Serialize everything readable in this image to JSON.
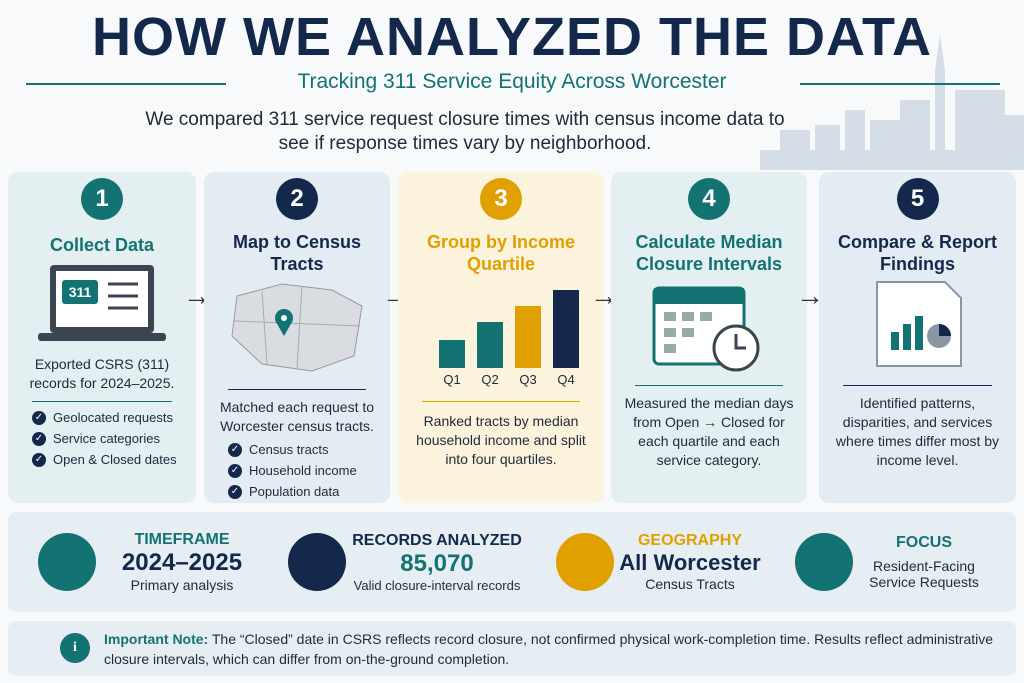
{
  "header": {
    "title": "HOW WE ANALYZED THE DATA",
    "subtitle": "Tracking 311 Service Equity Across Worcester",
    "intro": "We compared 311 service request closure times with census income data to see if response times vary by neighborhood."
  },
  "steps": [
    {
      "number": "1",
      "title": "Collect Data",
      "icon_text": "311",
      "description": "Exported CSRS (311) records for 2024–2025.",
      "bullets": [
        "Geolocated requests",
        "Service categories",
        "Open & Closed dates"
      ]
    },
    {
      "number": "2",
      "title": "Map to Census Tracts",
      "description": "Matched each request to Worcester census tracts.",
      "bullets": [
        "Census tracts",
        "Household income",
        "Population data"
      ]
    },
    {
      "number": "3",
      "title": "Group by Income Quartile",
      "icon_labels": [
        "Q1",
        "Q2",
        "Q3",
        "Q4"
      ],
      "description": "Ranked tracts by median household income and split into four quartiles."
    },
    {
      "number": "4",
      "title": "Calculate Median Closure Intervals",
      "description": "Measured the median days from Open → Closed for each quartile and each service category."
    },
    {
      "number": "5",
      "title": "Compare & Report Findings",
      "description": "Identified patterns, disparities, and services where times differ most by income level."
    }
  ],
  "stats": [
    {
      "label": "TIMEFRAME",
      "value": "2024–2025",
      "caption": "Primary analysis"
    },
    {
      "label": "RECORDS ANALYZED",
      "value": "85,070",
      "caption": "Valid closure-interval records"
    },
    {
      "label": "GEOGRAPHY",
      "value": "All Worcester",
      "caption": "Census Tracts"
    },
    {
      "label": "FOCUS",
      "caption": "Resident-Facing Service Requests"
    }
  ],
  "note": {
    "label": "Important Note:",
    "text": "The “Closed” date in CSRS reflects record closure, not confirmed physical work-completion time. Results reflect administrative closure intervals, which can differ from on-the-ground completion."
  }
}
